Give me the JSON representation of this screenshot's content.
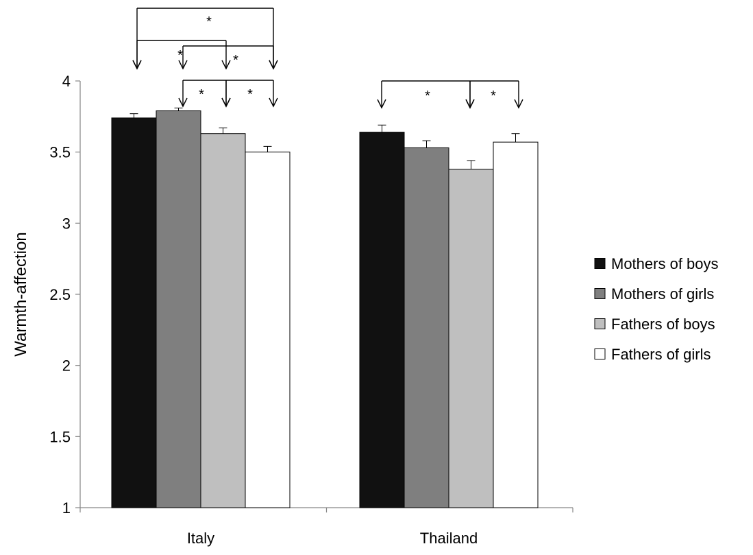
{
  "chart_data": {
    "type": "bar",
    "ylabel": "Warmth-affection",
    "ylim": [
      1,
      4
    ],
    "yticks": [
      "1",
      "1.5",
      "2",
      "2.5",
      "3",
      "3.5",
      "4"
    ],
    "ytick_values": [
      1,
      1.5,
      2,
      2.5,
      3,
      3.5,
      4
    ],
    "categories": [
      "Italy",
      "Thailand"
    ],
    "series": [
      {
        "name": "Mothers of boys",
        "color": "#111111",
        "values": [
          3.74,
          3.64
        ],
        "errors": [
          0.03,
          0.05
        ]
      },
      {
        "name": "Mothers of girls",
        "color": "#7f7f7f",
        "values": [
          3.79,
          3.53
        ],
        "errors": [
          0.02,
          0.05
        ]
      },
      {
        "name": "Fathers of boys",
        "color": "#bfbfbf",
        "values": [
          3.63,
          3.38
        ],
        "errors": [
          0.04,
          0.06
        ]
      },
      {
        "name": "Fathers of girls",
        "color": "#ffffff",
        "values": [
          3.5,
          3.57
        ],
        "errors": [
          0.04,
          0.06
        ]
      }
    ],
    "legend_position": "right",
    "grid": false,
    "significance_marker": "*",
    "significance": [
      {
        "category": 0,
        "from": 0,
        "to": 3
      },
      {
        "category": 0,
        "from": 0,
        "to": 2
      },
      {
        "category": 0,
        "from": 1,
        "to": 3
      },
      {
        "category": 0,
        "from": 1,
        "to": 2
      },
      {
        "category": 0,
        "from": 2,
        "to": 3
      },
      {
        "category": 1,
        "from": 0,
        "to": 2
      },
      {
        "category": 1,
        "from": 2,
        "to": 3
      }
    ]
  }
}
